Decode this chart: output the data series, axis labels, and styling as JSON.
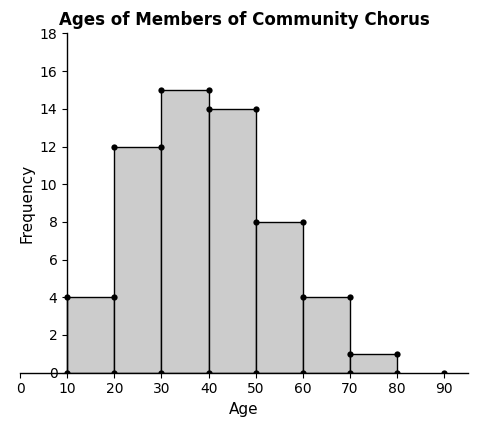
{
  "title": "Ages of Members of Community Chorus",
  "xlabel": "Age",
  "ylabel": "Frequency",
  "bin_edges": [
    10,
    20,
    30,
    40,
    50,
    60,
    70,
    80,
    90
  ],
  "frequencies": [
    4,
    12,
    15,
    14,
    8,
    4,
    1,
    0
  ],
  "xlim": [
    0,
    95
  ],
  "ylim": [
    0,
    18
  ],
  "xticks": [
    0,
    10,
    20,
    30,
    40,
    50,
    60,
    70,
    80,
    90
  ],
  "yticks": [
    0,
    2,
    4,
    6,
    8,
    10,
    12,
    14,
    16,
    18
  ],
  "bar_color": "#cccccc",
  "edge_color": "#000000",
  "dot_color": "#000000",
  "dot_size": 4.5,
  "title_fontsize": 12,
  "label_fontsize": 11,
  "tick_fontsize": 10,
  "linewidth": 1.0
}
